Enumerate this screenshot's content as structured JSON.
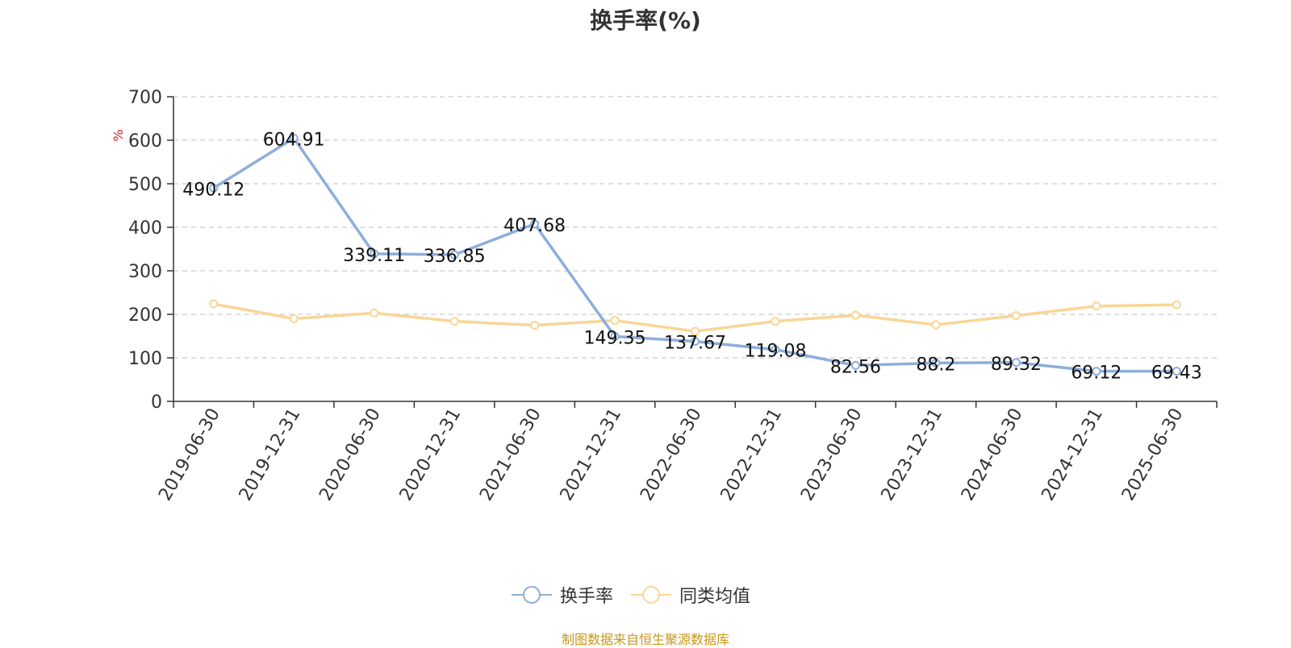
{
  "chart_data": {
    "type": "line",
    "title": "换手率(%)",
    "ylabel": "%",
    "ylim": [
      0,
      700
    ],
    "yticks": [
      0,
      100,
      200,
      300,
      400,
      500,
      600,
      700
    ],
    "categories": [
      "2019-06-30",
      "2019-12-31",
      "2020-06-30",
      "2020-12-31",
      "2021-06-30",
      "2021-12-31",
      "2022-06-30",
      "2022-12-31",
      "2023-06-30",
      "2023-12-31",
      "2024-06-30",
      "2024-12-31",
      "2025-06-30"
    ],
    "series": [
      {
        "name": "换手率",
        "color": "#8eaedb",
        "values": [
          490.12,
          604.91,
          339.11,
          336.85,
          407.68,
          149.35,
          137.67,
          119.08,
          82.56,
          88.2,
          89.32,
          69.12,
          69.43
        ],
        "labels": [
          "490.12",
          "604.91",
          "339.11",
          "336.85",
          "407.68",
          "149.35",
          "137.67",
          "119.08",
          "82.56",
          "88.2",
          "89.32",
          "69.12",
          "69.43"
        ]
      },
      {
        "name": "同类均值",
        "color": "#fad596",
        "values": [
          224,
          190,
          203,
          184,
          175,
          186,
          161,
          184,
          198,
          176,
          197,
          219,
          222
        ]
      }
    ],
    "grid": true,
    "legend_position": "bottom"
  },
  "source_note": "制图数据来自恒生聚源数据库"
}
